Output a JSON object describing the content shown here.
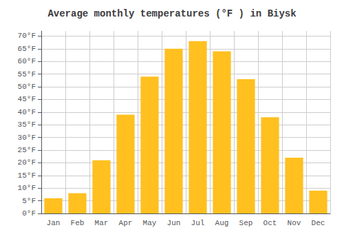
{
  "chart_data": {
    "type": "bar",
    "title": "Average monthly temperatures (°F ) in Biysk",
    "categories": [
      "Jan",
      "Feb",
      "Mar",
      "Apr",
      "May",
      "Jun",
      "Jul",
      "Aug",
      "Sep",
      "Oct",
      "Nov",
      "Dec"
    ],
    "values": [
      6,
      8,
      21,
      39,
      54,
      65,
      68,
      64,
      53,
      38,
      22,
      9
    ],
    "color": "#FFC020",
    "ylim": [
      0,
      72
    ],
    "yticks": [
      {
        "value": 0,
        "label": "0°F"
      },
      {
        "value": 5,
        "label": "5°F"
      },
      {
        "value": 10,
        "label": "10°F"
      },
      {
        "value": 15,
        "label": "15°F"
      },
      {
        "value": 20,
        "label": "20°F"
      },
      {
        "value": 25,
        "label": "25°F"
      },
      {
        "value": 30,
        "label": "30°F"
      },
      {
        "value": 35,
        "label": "35°F"
      },
      {
        "value": 40,
        "label": "40°F"
      },
      {
        "value": 45,
        "label": "45°F"
      },
      {
        "value": 50,
        "label": "50°F"
      },
      {
        "value": 55,
        "label": "55°F"
      },
      {
        "value": 60,
        "label": "60°F"
      },
      {
        "value": 65,
        "label": "65°F"
      },
      {
        "value": 70,
        "label": "70°F"
      }
    ],
    "grid": true
  }
}
